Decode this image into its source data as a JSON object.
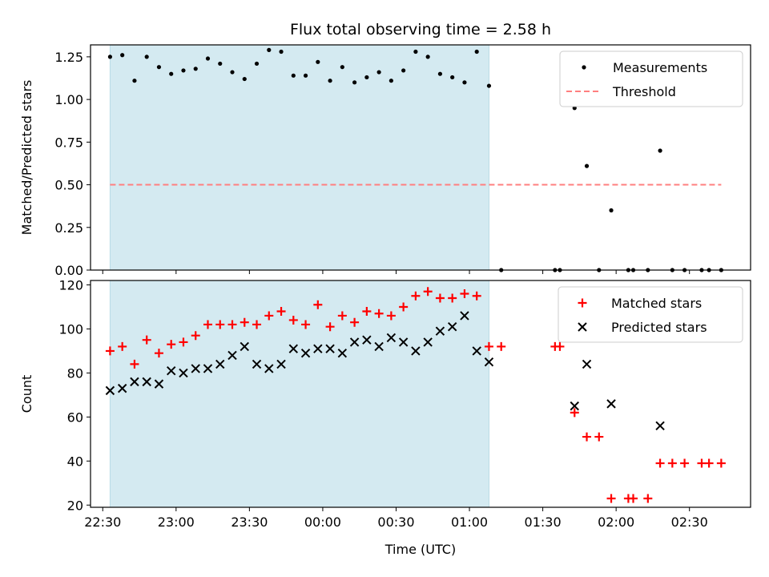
{
  "chart_data": [
    {
      "type": "scatter",
      "title": "Flux total observing time = 2.58 h",
      "xlabel": "",
      "ylabel": "Matched/Predicted stars",
      "xlim": [
        "22:25",
        "02:55"
      ],
      "ylim": [
        0,
        1.32
      ],
      "xticks": [
        "22:30",
        "23:00",
        "23:30",
        "00:00",
        "00:30",
        "01:00",
        "01:30",
        "02:00",
        "02:30"
      ],
      "yticks": [
        "0.00",
        "0.25",
        "0.50",
        "0.75",
        "1.00",
        "1.25"
      ],
      "shaded_interval": [
        "22:33",
        "01:08"
      ],
      "shade_color": "#d4eaf1",
      "legend_position": "top-right",
      "legend": [
        {
          "label": "Measurements",
          "marker": "dot",
          "color": "#000000"
        },
        {
          "label": "Threshold",
          "marker": "dashed-line",
          "color": "#ff7f7f"
        }
      ],
      "threshold": {
        "value": 0.5,
        "x": [
          "22:33",
          "02:43"
        ],
        "color": "#ff7f7f"
      },
      "series": [
        {
          "name": "Measurements",
          "color": "#000000",
          "points": [
            [
              "22:33",
              1.25
            ],
            [
              "22:38",
              1.26
            ],
            [
              "22:43",
              1.11
            ],
            [
              "22:48",
              1.25
            ],
            [
              "22:53",
              1.19
            ],
            [
              "22:58",
              1.15
            ],
            [
              "23:03",
              1.17
            ],
            [
              "23:08",
              1.18
            ],
            [
              "23:13",
              1.24
            ],
            [
              "23:18",
              1.21
            ],
            [
              "23:23",
              1.16
            ],
            [
              "23:28",
              1.12
            ],
            [
              "23:33",
              1.21
            ],
            [
              "23:38",
              1.29
            ],
            [
              "23:43",
              1.28
            ],
            [
              "23:48",
              1.14
            ],
            [
              "23:53",
              1.14
            ],
            [
              "23:58",
              1.22
            ],
            [
              "00:03",
              1.11
            ],
            [
              "00:08",
              1.19
            ],
            [
              "00:13",
              1.1
            ],
            [
              "00:18",
              1.13
            ],
            [
              "00:23",
              1.16
            ],
            [
              "00:28",
              1.11
            ],
            [
              "00:33",
              1.17
            ],
            [
              "00:38",
              1.28
            ],
            [
              "00:43",
              1.25
            ],
            [
              "00:48",
              1.15
            ],
            [
              "00:53",
              1.13
            ],
            [
              "00:58",
              1.1
            ],
            [
              "01:03",
              1.28
            ],
            [
              "01:08",
              1.08
            ],
            [
              "01:13",
              0.0
            ],
            [
              "01:35",
              0.0
            ],
            [
              "01:37",
              0.0
            ],
            [
              "01:43",
              0.95
            ],
            [
              "01:48",
              0.61
            ],
            [
              "01:53",
              0.0
            ],
            [
              "01:58",
              0.35
            ],
            [
              "02:05",
              0.0
            ],
            [
              "02:07",
              0.0
            ],
            [
              "02:13",
              0.0
            ],
            [
              "02:18",
              0.7
            ],
            [
              "02:23",
              0.0
            ],
            [
              "02:28",
              0.0
            ],
            [
              "02:35",
              0.0
            ],
            [
              "02:38",
              0.0
            ],
            [
              "02:43",
              0.0
            ]
          ]
        }
      ]
    },
    {
      "type": "scatter",
      "title": "",
      "xlabel": "Time (UTC)",
      "ylabel": "Count",
      "xlim": [
        "22:25",
        "02:55"
      ],
      "ylim": [
        19,
        122
      ],
      "xticks": [
        "22:30",
        "23:00",
        "23:30",
        "00:00",
        "00:30",
        "01:00",
        "01:30",
        "02:00",
        "02:30"
      ],
      "yticks": [
        "20",
        "40",
        "60",
        "80",
        "100",
        "120"
      ],
      "shaded_interval": [
        "22:33",
        "01:08"
      ],
      "shade_color": "#d4eaf1",
      "legend_position": "top-right",
      "legend": [
        {
          "label": "Matched stars",
          "marker": "plus",
          "color": "#ff0000"
        },
        {
          "label": "Predicted stars",
          "marker": "x",
          "color": "#000000"
        }
      ],
      "series": [
        {
          "name": "Matched stars",
          "marker": "plus",
          "color": "#ff0000",
          "points": [
            [
              "22:33",
              90
            ],
            [
              "22:38",
              92
            ],
            [
              "22:43",
              84
            ],
            [
              "22:48",
              95
            ],
            [
              "22:53",
              89
            ],
            [
              "22:58",
              93
            ],
            [
              "23:03",
              94
            ],
            [
              "23:08",
              97
            ],
            [
              "23:13",
              102
            ],
            [
              "23:18",
              102
            ],
            [
              "23:23",
              102
            ],
            [
              "23:28",
              103
            ],
            [
              "23:33",
              102
            ],
            [
              "23:38",
              106
            ],
            [
              "23:43",
              108
            ],
            [
              "23:48",
              104
            ],
            [
              "23:53",
              102
            ],
            [
              "23:58",
              111
            ],
            [
              "00:03",
              101
            ],
            [
              "00:08",
              106
            ],
            [
              "00:13",
              103
            ],
            [
              "00:18",
              108
            ],
            [
              "00:23",
              107
            ],
            [
              "00:28",
              106
            ],
            [
              "00:33",
              110
            ],
            [
              "00:38",
              115
            ],
            [
              "00:43",
              117
            ],
            [
              "00:48",
              114
            ],
            [
              "00:53",
              114
            ],
            [
              "00:58",
              116
            ],
            [
              "01:03",
              115
            ],
            [
              "01:08",
              92
            ],
            [
              "01:13",
              92
            ],
            [
              "01:35",
              92
            ],
            [
              "01:37",
              92
            ],
            [
              "01:43",
              62
            ],
            [
              "01:48",
              51
            ],
            [
              "01:53",
              51
            ],
            [
              "01:58",
              23
            ],
            [
              "02:05",
              23
            ],
            [
              "02:07",
              23
            ],
            [
              "02:13",
              23
            ],
            [
              "02:18",
              39
            ],
            [
              "02:23",
              39
            ],
            [
              "02:28",
              39
            ],
            [
              "02:35",
              39
            ],
            [
              "02:38",
              39
            ],
            [
              "02:43",
              39
            ]
          ]
        },
        {
          "name": "Predicted stars",
          "marker": "x",
          "color": "#000000",
          "points": [
            [
              "22:33",
              72
            ],
            [
              "22:38",
              73
            ],
            [
              "22:43",
              76
            ],
            [
              "22:48",
              76
            ],
            [
              "22:53",
              75
            ],
            [
              "22:58",
              81
            ],
            [
              "23:03",
              80
            ],
            [
              "23:08",
              82
            ],
            [
              "23:13",
              82
            ],
            [
              "23:18",
              84
            ],
            [
              "23:23",
              88
            ],
            [
              "23:28",
              92
            ],
            [
              "23:33",
              84
            ],
            [
              "23:38",
              82
            ],
            [
              "23:43",
              84
            ],
            [
              "23:48",
              91
            ],
            [
              "23:53",
              89
            ],
            [
              "23:58",
              91
            ],
            [
              "00:03",
              91
            ],
            [
              "00:08",
              89
            ],
            [
              "00:13",
              94
            ],
            [
              "00:18",
              95
            ],
            [
              "00:23",
              92
            ],
            [
              "00:28",
              96
            ],
            [
              "00:33",
              94
            ],
            [
              "00:38",
              90
            ],
            [
              "00:43",
              94
            ],
            [
              "00:48",
              99
            ],
            [
              "00:53",
              101
            ],
            [
              "00:58",
              106
            ],
            [
              "01:03",
              90
            ],
            [
              "01:08",
              85
            ],
            [
              "01:43",
              65
            ],
            [
              "01:48",
              84
            ],
            [
              "01:58",
              66
            ],
            [
              "02:18",
              56
            ]
          ]
        }
      ]
    }
  ]
}
